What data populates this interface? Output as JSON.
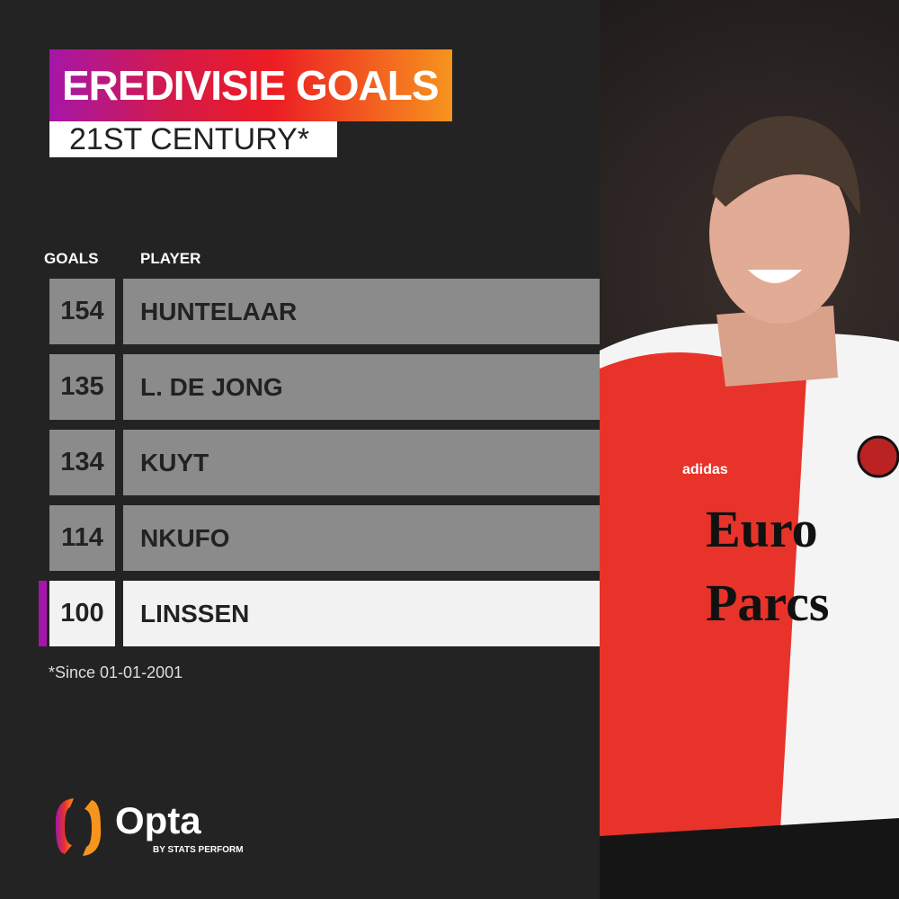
{
  "title": "EREDIVISIE GOALS",
  "subtitle": "21ST CENTURY*",
  "columns": {
    "goals": "GOALS",
    "player": "PLAYER"
  },
  "rows": [
    {
      "goals": "154",
      "player": "HUNTELAAR"
    },
    {
      "goals": "135",
      "player": "L. DE JONG"
    },
    {
      "goals": "134",
      "player": "KUYT"
    },
    {
      "goals": "114",
      "player": "NKUFO"
    },
    {
      "goals": "100",
      "player": "LINSSEN",
      "highlighted": true
    }
  ],
  "footnote": "*Since 01-01-2001",
  "brand": {
    "name": "Opta",
    "tagline": "BY STATS PERFORM"
  },
  "photo": {
    "shirt_sponsor": "Euro Parcs",
    "kit_brand": "adidas"
  },
  "colors": {
    "background": "#232323",
    "row": "#8b8b8b",
    "highlight_row": "#f2f2f2",
    "accent": "#a516a8",
    "gradient_end": "#f7941d"
  }
}
